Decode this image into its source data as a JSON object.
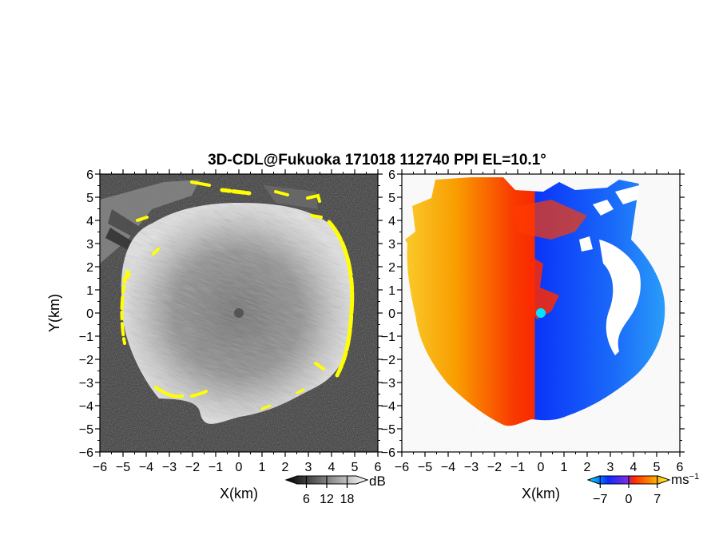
{
  "chart_data": {
    "type": "heatmap",
    "title": "3D-CDL@Fukuoka 171018 112740 PPI EL=10.1°",
    "panels": [
      {
        "quantity": "reflectivity-like intensity",
        "xlabel": "X(km)",
        "ylabel": "Y(km)",
        "xlim": [
          -6,
          6
        ],
        "ylim": [
          -6,
          6
        ],
        "ticks": [
          -6,
          -5,
          -4,
          -3,
          -2,
          -1,
          0,
          1,
          2,
          3,
          4,
          5,
          6
        ],
        "colorbar": {
          "unit": "dB",
          "tick_labels": [
            "6",
            "12",
            "18"
          ],
          "ticks": [
            6,
            12,
            18
          ],
          "range": [
            0,
            24
          ],
          "colormap": "grayscale",
          "color_low": "#000000",
          "color_high": "#ffffff"
        },
        "highlight_color": "#ffff00",
        "center_marker_color": "#555555"
      },
      {
        "quantity": "Doppler velocity",
        "xlabel": "X(km)",
        "xlim": [
          -6,
          6
        ],
        "ylim": [
          -6,
          6
        ],
        "ticks": [
          -6,
          -5,
          -4,
          -3,
          -2,
          -1,
          0,
          1,
          2,
          3,
          4,
          5,
          6
        ],
        "colorbar": {
          "unit": "ms",
          "unit_exponent": "−1",
          "tick_labels": [
            "−7",
            "0",
            "7"
          ],
          "ticks": [
            -7,
            0,
            7
          ],
          "range": [
            -10,
            10
          ],
          "colormap": "cyan-blue-red-orange-yellow",
          "colors": [
            "#00e5ff",
            "#0a2bff",
            "#ff2400",
            "#ff9a00",
            "#ffff30"
          ]
        },
        "center_marker_color": "#00e5ff"
      }
    ]
  }
}
